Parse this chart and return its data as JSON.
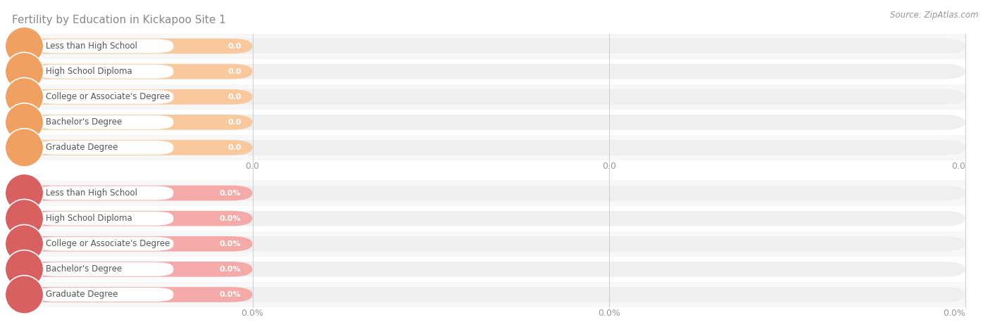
{
  "title": "Fertility by Education in Kickapoo Site 1",
  "source": "Source: ZipAtlas.com",
  "categories": [
    "Less than High School",
    "High School Diploma",
    "College or Associate's Degree",
    "Bachelor's Degree",
    "Graduate Degree"
  ],
  "group1_values": [
    0.0,
    0.0,
    0.0,
    0.0,
    0.0
  ],
  "group2_values": [
    0.0,
    0.0,
    0.0,
    0.0,
    0.0
  ],
  "group1_labels": [
    "0.0",
    "0.0",
    "0.0",
    "0.0",
    "0.0"
  ],
  "group2_labels": [
    "0.0%",
    "0.0%",
    "0.0%",
    "0.0%",
    "0.0%"
  ],
  "group1_bar_color": "#F9C89C",
  "group1_dot_color": "#F0A060",
  "group2_bar_color": "#F5AAAA",
  "group2_dot_color": "#D96060",
  "bg_bar_color": "#EFEFEF",
  "axis_tick_color": "#999999",
  "title_color": "#888888",
  "source_color": "#999999",
  "cat_text_color": "#555555",
  "val_label_color": "#ffffff",
  "stripe_odd": "#F7F7F7",
  "stripe_even": "#FFFFFF",
  "group1_axis_label": "0.0",
  "group2_axis_label": "0.0%",
  "background_color": "#ffffff",
  "fig_width": 14.06,
  "fig_height": 4.75
}
